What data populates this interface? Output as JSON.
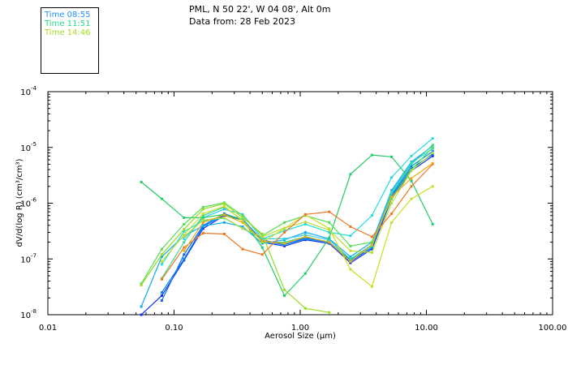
{
  "header": {
    "line1": "PML, N 50 22', W 04 08', Alt 0m",
    "line2": "Data from: 28 Feb 2023"
  },
  "legend": [
    {
      "label": "Time 08:55",
      "color": "#1E90FF"
    },
    {
      "label": "Time 11:51",
      "color": "#22DD88"
    },
    {
      "label": "Time 14:46",
      "color": "#AADD22"
    }
  ],
  "chart_data": {
    "type": "line",
    "xscale": "log",
    "yscale": "log",
    "xlim": [
      0.01,
      100
    ],
    "ylim": [
      1e-08,
      0.0001
    ],
    "xlabel": "Aerosol Size (µm)",
    "ylabel": "dV/d(log R) (cm³/cm³)",
    "xticklabels": [
      {
        "value": 0.01,
        "label": "0.01"
      },
      {
        "value": 0.1,
        "label": "0.10"
      },
      {
        "value": 1,
        "label": "1.00"
      },
      {
        "value": 10,
        "label": "10.00"
      },
      {
        "value": 100,
        "label": "100.00"
      }
    ],
    "yticklabels": [
      {
        "value": 1e-08,
        "base": "10",
        "exp": "-8"
      },
      {
        "value": 1e-07,
        "base": "10",
        "exp": "-7"
      },
      {
        "value": 1e-06,
        "base": "10",
        "exp": "-6"
      },
      {
        "value": 1e-05,
        "base": "10",
        "exp": "-5"
      },
      {
        "value": 0.0001,
        "base": "10",
        "exp": "-4"
      }
    ],
    "grid": false,
    "x": [
      0.055,
      0.08,
      0.12,
      0.17,
      0.25,
      0.35,
      0.5,
      0.75,
      1.1,
      1.7,
      2.5,
      3.7,
      5.3,
      7.6,
      11.2
    ],
    "series": [
      {
        "color": "#1133EE",
        "values": [
          1e-08,
          2.2e-08,
          9.5e-08,
          3.5e-07,
          6e-07,
          5e-07,
          2e-07,
          1.7e-07,
          2.2e-07,
          1.9e-07,
          8.5e-08,
          1.5e-07,
          1.2e-06,
          3.8e-06,
          7e-06
        ]
      },
      {
        "color": "#1166EE",
        "values": [
          null,
          1.8e-08,
          1.2e-07,
          4e-07,
          6.5e-07,
          5e-07,
          2.2e-07,
          1.8e-07,
          2.4e-07,
          2e-07,
          9e-08,
          1.6e-07,
          1.3e-06,
          4.2e-06,
          7.5e-06
        ]
      },
      {
        "color": "#0088EE",
        "values": [
          null,
          2.5e-08,
          1e-07,
          3.8e-07,
          6.2e-07,
          5.2e-07,
          2.1e-07,
          1.8e-07,
          2.3e-07,
          2e-07,
          9.5e-08,
          1.6e-07,
          1.4e-06,
          4.6e-06,
          8.5e-06
        ]
      },
      {
        "color": "#11AAEE",
        "values": [
          1.4e-08,
          1.1e-07,
          2.6e-07,
          3.9e-07,
          4.5e-07,
          3.8e-07,
          1.9e-07,
          2.2e-07,
          3e-07,
          2.3e-07,
          1.1e-07,
          2e-07,
          1.7e-06,
          5.5e-06,
          1.06e-05
        ]
      },
      {
        "color": "#22DDDD",
        "values": [
          null,
          8e-08,
          3.1e-07,
          4.8e-07,
          5.4e-07,
          3.5e-07,
          2.3e-07,
          3.2e-07,
          4.2e-07,
          3e-07,
          2.6e-07,
          6e-07,
          2.9e-06,
          7e-06,
          1.45e-05
        ]
      },
      {
        "color": "#33CCEE",
        "values": [
          null,
          null,
          2.3e-07,
          5.5e-07,
          7.8e-07,
          6.3e-07,
          2.3e-07,
          2.3e-07,
          2.7e-07,
          2.2e-07,
          1e-07,
          1.8e-07,
          1.6e-06,
          5.3e-06,
          9.5e-06
        ]
      },
      {
        "color": "#22CC66",
        "values": [
          2.4e-06,
          1.2e-06,
          5.5e-07,
          5.5e-07,
          6.3e-07,
          5e-07,
          1.6e-07,
          2.2e-08,
          5.5e-08,
          2.4e-07,
          3.3e-06,
          7.3e-06,
          6.8e-06,
          2.5e-06,
          4.2e-07
        ]
      },
      {
        "color": "#33DD99",
        "values": [
          null,
          4.5e-08,
          2e-07,
          6e-07,
          8.5e-07,
          5e-07,
          2e-07,
          2e-07,
          2.5e-07,
          2e-07,
          1e-07,
          1.7e-07,
          1.5e-06,
          5e-06,
          1.1e-05
        ]
      },
      {
        "color": "#55DD55",
        "values": [
          3.6e-08,
          1.5e-07,
          4.2e-07,
          8.5e-07,
          1.02e-06,
          6e-07,
          2.6e-07,
          4.5e-07,
          6e-07,
          4.5e-07,
          1.7e-07,
          2e-07,
          1.2e-06,
          4e-06,
          1e-05
        ]
      },
      {
        "color": "#99DD22",
        "values": [
          3.4e-08,
          1.2e-07,
          3.4e-07,
          7.8e-07,
          9.8e-07,
          5.5e-07,
          2.8e-07,
          2.8e-08,
          1.3e-08,
          1.1e-08,
          null,
          null,
          null,
          null,
          null
        ]
      },
      {
        "color": "#CCDD22",
        "values": [
          null,
          9e-08,
          2.7e-07,
          6.5e-07,
          8.8e-07,
          4.8e-07,
          2e-07,
          3.5e-07,
          6.2e-07,
          3.5e-07,
          6.5e-08,
          3.2e-08,
          4.5e-07,
          1.2e-06,
          2e-06
        ]
      },
      {
        "color": "#BBDD33",
        "values": [
          null,
          null,
          2.5e-07,
          5e-07,
          5.5e-07,
          3.5e-07,
          2.5e-07,
          3.6e-07,
          4.6e-07,
          3.3e-07,
          1.4e-07,
          1.3e-07,
          1e-06,
          3.8e-06,
          8e-06
        ]
      },
      {
        "color": "#EE7722",
        "values": [
          null,
          4.3e-08,
          1.6e-07,
          2.9e-07,
          2.8e-07,
          1.5e-07,
          1.2e-07,
          3e-07,
          6.3e-07,
          7e-07,
          3.8e-07,
          2.5e-07,
          6.5e-07,
          2e-06,
          5e-06
        ]
      },
      {
        "color": "#EEAA11",
        "values": [
          null,
          null,
          1.4e-07,
          4.5e-07,
          6.2e-07,
          4.5e-07,
          2.1e-07,
          1.9e-07,
          2.5e-07,
          2e-07,
          9e-08,
          1.8e-07,
          1.3e-06,
          2.8e-06,
          5.2e-06
        ]
      }
    ]
  }
}
